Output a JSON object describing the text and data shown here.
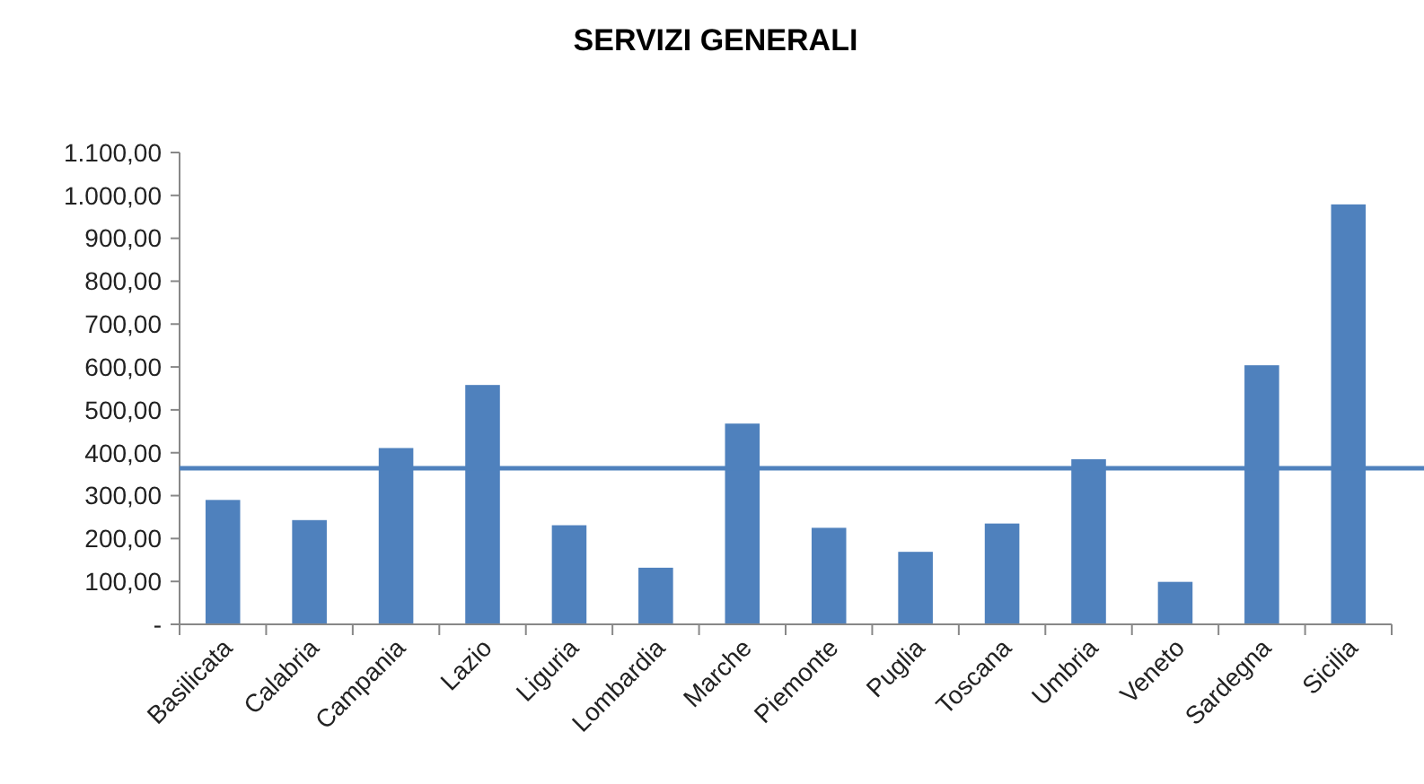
{
  "chart_data": {
    "type": "bar",
    "title": "SERVIZI GENERALI",
    "categories": [
      "Basilicata",
      "Calabria",
      "Campania",
      "Lazio",
      "Liguria",
      "Lombardia",
      "Marche",
      "Piemonte",
      "Puglia",
      "Toscana",
      "Umbria",
      "Veneto",
      "Sardegna",
      "Sicilia"
    ],
    "values": [
      290,
      243,
      411,
      558,
      231,
      132,
      468,
      225,
      169,
      235,
      385,
      99,
      604,
      979
    ],
    "color": "#4f81bd",
    "ylim": [
      0,
      1100
    ],
    "yticks": [
      {
        "value": 0,
        "label": "-"
      },
      {
        "value": 100,
        "label": "100,00"
      },
      {
        "value": 200,
        "label": "200,00"
      },
      {
        "value": 300,
        "label": "300,00"
      },
      {
        "value": 400,
        "label": "400,00"
      },
      {
        "value": 500,
        "label": "500,00"
      },
      {
        "value": 600,
        "label": "600,00"
      },
      {
        "value": 700,
        "label": "700,00"
      },
      {
        "value": 800,
        "label": "800,00"
      },
      {
        "value": 900,
        "label": "900,00"
      },
      {
        "value": 1000,
        "label": "1.000,00"
      },
      {
        "value": 1100,
        "label": "1.100,00"
      }
    ],
    "ref_lines": [
      {
        "axis": "y",
        "value": 364,
        "color": "#4f81bd"
      }
    ],
    "grid": false
  }
}
